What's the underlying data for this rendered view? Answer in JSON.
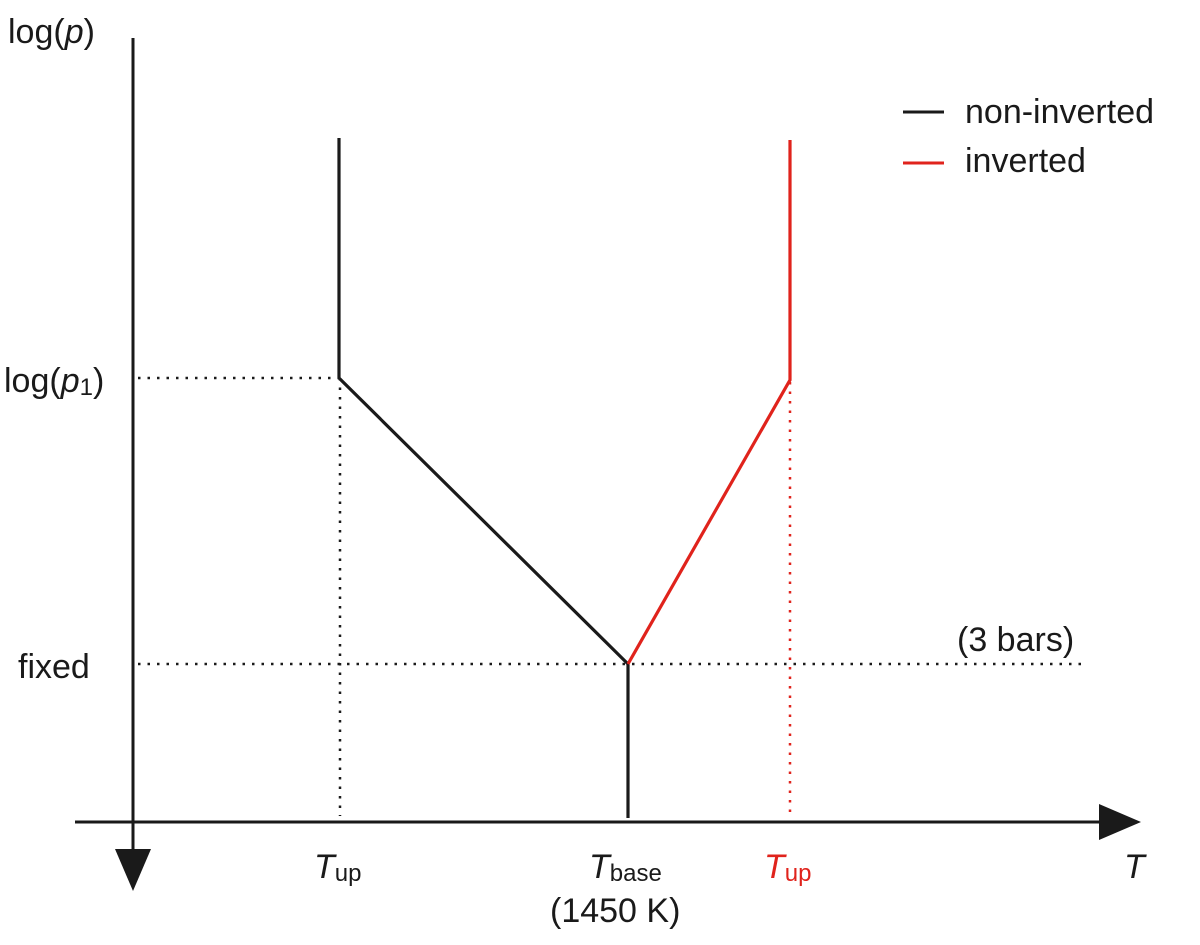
{
  "diagram": {
    "y_axis": {
      "label_prefix": "log(",
      "label_var": "p",
      "label_suffix": ")",
      "ticks": {
        "p1": {
          "prefix": "log(",
          "var": "p",
          "sub": "1",
          "suffix": ")"
        },
        "fixed": "fixed"
      }
    },
    "x_axis": {
      "label": "T",
      "ticks": [
        {
          "var": "T",
          "sub": "up",
          "color": "#1a1a1a"
        },
        {
          "var": "T",
          "sub": "base",
          "note": "(1450 K)",
          "color": "#1a1a1a"
        },
        {
          "var": "T",
          "sub": "up",
          "color": "#e0231c"
        }
      ]
    },
    "annotation_fixed": "(3 bars)",
    "legend": [
      {
        "label": "non-inverted",
        "color": "#1a1a1a"
      },
      {
        "label": "inverted",
        "color": "#e0231c"
      }
    ]
  }
}
